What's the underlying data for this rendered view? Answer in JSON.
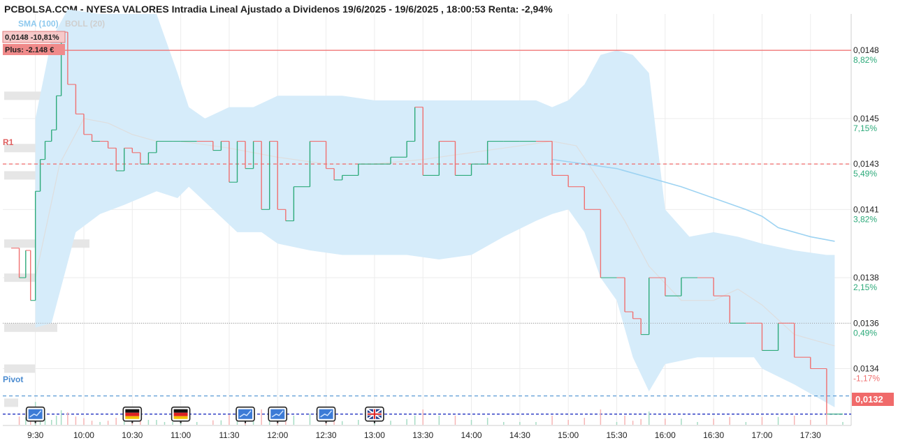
{
  "title": "PCBOLSA.COM - NYESA VALORES Intradia Lineal Ajustado a Dividenos 19/6/2025 - 19/6/2025 , 18:00:53 Renta: -2,94%",
  "legend": {
    "sma": "SMA (100)",
    "boll": "BOLL (20)"
  },
  "badges": {
    "price_change": "0,0148  -10,81%",
    "plus": "Plus: -2.148 €"
  },
  "levels": {
    "r1": "R1",
    "pivot": "Pivot"
  },
  "current_price_label": "0,0132",
  "colors": {
    "up": "#2daa7a",
    "down": "#f07070",
    "band": "#d6ecfa",
    "sma": "#9dd3f2",
    "r1": "#f06a6a",
    "pivot": "#5a9bd5",
    "current": "#2030c0",
    "price_badge": "#f06a6a"
  },
  "chart_data": {
    "type": "line",
    "x_ticks": [
      "9:30",
      "10:00",
      "10:30",
      "11:00",
      "11:30",
      "12:00",
      "12:30",
      "13:00",
      "13:30",
      "14:00",
      "14:30",
      "15:00",
      "15:30",
      "16:00",
      "16:30",
      "17:00",
      "17:30"
    ],
    "y_ticks": [
      {
        "value": 0.0148,
        "label": "0,0148",
        "pct": "8,82%",
        "dir": "up"
      },
      {
        "value": 0.0145,
        "label": "0,0145",
        "pct": "7,15%",
        "dir": "up"
      },
      {
        "value": 0.0143,
        "label": "0,0143",
        "pct": "5,49%",
        "dir": "up"
      },
      {
        "value": 0.0141,
        "label": "0,0141",
        "pct": "3,82%",
        "dir": "up"
      },
      {
        "value": 0.0138,
        "label": "0,0138",
        "pct": "2,15%",
        "dir": "up"
      },
      {
        "value": 0.0136,
        "label": "0,0136",
        "pct": "0,49%",
        "dir": "up"
      },
      {
        "value": 0.0134,
        "label": "0,0134",
        "pct": "-1,17%",
        "dir": "down"
      }
    ],
    "ylim": [
      0.01315,
      0.01496
    ],
    "reference_lines": {
      "high": 0.0148,
      "r1": 0.0143,
      "previous_close": 0.0136,
      "pivot": 0.01328,
      "current": 0.0132
    },
    "time_start": "9:15",
    "time_end": "17:50",
    "price": [
      [
        "9:15",
        0.01393
      ],
      [
        "9:20",
        0.0138
      ],
      [
        "9:24",
        0.01392
      ],
      [
        "9:27",
        0.0137
      ],
      [
        "9:30",
        0.01418
      ],
      [
        "9:33",
        0.01432
      ],
      [
        "9:36",
        0.0144
      ],
      [
        "9:40",
        0.01445
      ],
      [
        "9:43",
        0.0146
      ],
      [
        "9:46",
        0.01488
      ],
      [
        "9:50",
        0.01465
      ],
      [
        "9:55",
        0.01452
      ],
      [
        "10:00",
        0.01443
      ],
      [
        "10:05",
        0.0144
      ],
      [
        "10:10",
        0.0144
      ],
      [
        "10:15",
        0.01437
      ],
      [
        "10:20",
        0.01427
      ],
      [
        "10:25",
        0.01437
      ],
      [
        "10:30",
        0.01435
      ],
      [
        "10:35",
        0.0143
      ],
      [
        "10:40",
        0.01435
      ],
      [
        "10:45",
        0.0144
      ],
      [
        "10:50",
        0.0144
      ],
      [
        "10:55",
        0.0144
      ],
      [
        "11:00",
        0.0144
      ],
      [
        "11:10",
        0.0144
      ],
      [
        "11:20",
        0.01436
      ],
      [
        "11:25",
        0.0144
      ],
      [
        "11:30",
        0.01422
      ],
      [
        "11:35",
        0.0144
      ],
      [
        "11:40",
        0.01428
      ],
      [
        "11:45",
        0.0144
      ],
      [
        "11:50",
        0.0141
      ],
      [
        "11:55",
        0.0144
      ],
      [
        "12:00",
        0.0141
      ],
      [
        "12:05",
        0.01405
      ],
      [
        "12:10",
        0.0142
      ],
      [
        "12:20",
        0.0144
      ],
      [
        "12:30",
        0.01428
      ],
      [
        "12:35",
        0.01423
      ],
      [
        "12:40",
        0.01425
      ],
      [
        "12:50",
        0.0143
      ],
      [
        "13:00",
        0.0143
      ],
      [
        "13:10",
        0.01433
      ],
      [
        "13:20",
        0.0144
      ],
      [
        "13:25",
        0.01455
      ],
      [
        "13:30",
        0.01425
      ],
      [
        "13:40",
        0.0144
      ],
      [
        "13:50",
        0.01425
      ],
      [
        "14:00",
        0.0143
      ],
      [
        "14:10",
        0.0144
      ],
      [
        "14:20",
        0.0144
      ],
      [
        "14:30",
        0.0144
      ],
      [
        "14:40",
        0.0144
      ],
      [
        "14:50",
        0.01425
      ],
      [
        "15:00",
        0.0142
      ],
      [
        "15:10",
        0.0141
      ],
      [
        "15:20",
        0.0138
      ],
      [
        "15:30",
        0.0138
      ],
      [
        "15:35",
        0.01365
      ],
      [
        "15:40",
        0.01362
      ],
      [
        "15:45",
        0.01355
      ],
      [
        "15:50",
        0.0138
      ],
      [
        "16:00",
        0.01372
      ],
      [
        "16:10",
        0.0138
      ],
      [
        "16:20",
        0.0138
      ],
      [
        "16:30",
        0.01372
      ],
      [
        "16:40",
        0.0136
      ],
      [
        "16:50",
        0.0136
      ],
      [
        "17:00",
        0.01348
      ],
      [
        "17:10",
        0.0136
      ],
      [
        "17:20",
        0.01345
      ],
      [
        "17:30",
        0.0134
      ],
      [
        "17:40",
        0.0132
      ],
      [
        "17:50",
        0.0132
      ]
    ],
    "sma_100": [
      [
        "14:50",
        0.01432
      ],
      [
        "15:10",
        0.0143
      ],
      [
        "15:30",
        0.01428
      ],
      [
        "15:50",
        0.01424
      ],
      [
        "16:10",
        0.0142
      ],
      [
        "16:30",
        0.01415
      ],
      [
        "16:50",
        0.0141
      ],
      [
        "17:00",
        0.01407
      ],
      [
        "17:10",
        0.01402
      ],
      [
        "17:30",
        0.01398
      ],
      [
        "17:45",
        0.01396
      ]
    ],
    "boll_20": [
      [
        "9:30",
        0.0138
      ],
      [
        "9:45",
        0.0143
      ],
      [
        "10:00",
        0.0145
      ],
      [
        "10:15",
        0.01448
      ],
      [
        "10:30",
        0.01443
      ],
      [
        "10:45",
        0.0144
      ],
      [
        "11:00",
        0.0144
      ],
      [
        "11:30",
        0.01437
      ],
      [
        "12:00",
        0.01433
      ],
      [
        "12:30",
        0.0143
      ],
      [
        "13:00",
        0.0143
      ],
      [
        "13:30",
        0.01432
      ],
      [
        "14:00",
        0.01435
      ],
      [
        "14:30",
        0.01438
      ],
      [
        "14:50",
        0.0144
      ],
      [
        "15:05",
        0.01438
      ],
      [
        "15:20",
        0.01422
      ],
      [
        "15:35",
        0.01405
      ],
      [
        "15:50",
        0.01385
      ],
      [
        "16:10",
        0.0137
      ],
      [
        "16:30",
        0.0137
      ],
      [
        "16:45",
        0.01375
      ],
      [
        "17:00",
        0.01368
      ],
      [
        "17:20",
        0.01355
      ],
      [
        "17:35",
        0.01352
      ],
      [
        "17:45",
        0.0135
      ]
    ],
    "boll_upper": [
      [
        "9:30",
        0.0145
      ],
      [
        "9:40",
        0.01485
      ],
      [
        "9:50",
        0.01498
      ],
      [
        "10:10",
        0.01496
      ],
      [
        "10:25",
        0.01496
      ],
      [
        "10:45",
        0.01496
      ],
      [
        "10:58",
        0.0147
      ],
      [
        "11:05",
        0.01455
      ],
      [
        "11:15",
        0.0145
      ],
      [
        "11:30",
        0.01455
      ],
      [
        "11:45",
        0.01455
      ],
      [
        "12:00",
        0.0146
      ],
      [
        "12:20",
        0.0146
      ],
      [
        "12:40",
        0.0146
      ],
      [
        "13:00",
        0.01458
      ],
      [
        "13:20",
        0.01458
      ],
      [
        "13:40",
        0.01458
      ],
      [
        "14:00",
        0.01458
      ],
      [
        "14:20",
        0.01458
      ],
      [
        "14:40",
        0.01458
      ],
      [
        "14:50",
        0.01455
      ],
      [
        "15:00",
        0.01458
      ],
      [
        "15:10",
        0.01465
      ],
      [
        "15:20",
        0.01478
      ],
      [
        "15:30",
        0.0148
      ],
      [
        "15:40",
        0.01478
      ],
      [
        "15:50",
        0.0147
      ],
      [
        "16:00",
        0.0141
      ],
      [
        "16:15",
        0.01398
      ],
      [
        "16:30",
        0.014
      ],
      [
        "16:45",
        0.01398
      ],
      [
        "17:00",
        0.01395
      ],
      [
        "17:20",
        0.01392
      ],
      [
        "17:40",
        0.0139
      ],
      [
        "17:45",
        0.0139
      ]
    ],
    "boll_lower": [
      [
        "9:30",
        0.01358
      ],
      [
        "9:40",
        0.0136
      ],
      [
        "9:55",
        0.014
      ],
      [
        "10:10",
        0.01408
      ],
      [
        "10:25",
        0.01412
      ],
      [
        "10:45",
        0.01418
      ],
      [
        "10:58",
        0.01415
      ],
      [
        "11:05",
        0.0142
      ],
      [
        "11:20",
        0.0141
      ],
      [
        "11:35",
        0.014
      ],
      [
        "11:50",
        0.014
      ],
      [
        "12:00",
        0.01395
      ],
      [
        "12:20",
        0.01392
      ],
      [
        "12:40",
        0.0139
      ],
      [
        "13:00",
        0.0139
      ],
      [
        "13:20",
        0.0139
      ],
      [
        "13:40",
        0.01388
      ],
      [
        "14:00",
        0.0139
      ],
      [
        "14:20",
        0.01398
      ],
      [
        "14:40",
        0.01405
      ],
      [
        "14:50",
        0.01408
      ],
      [
        "15:00",
        0.0141
      ],
      [
        "15:10",
        0.014
      ],
      [
        "15:20",
        0.0138
      ],
      [
        "15:30",
        0.0137
      ],
      [
        "15:40",
        0.01345
      ],
      [
        "15:50",
        0.0133
      ],
      [
        "16:00",
        0.01342
      ],
      [
        "16:20",
        0.01345
      ],
      [
        "16:40",
        0.01345
      ],
      [
        "16:55",
        0.01345
      ],
      [
        "17:00",
        0.0134
      ],
      [
        "17:20",
        0.01333
      ],
      [
        "17:40",
        0.01325
      ],
      [
        "17:45",
        0.01323
      ]
    ],
    "volume_profile_levels": [
      0.0146,
      0.01437,
      0.01425,
      0.01395,
      0.0138,
      0.01358,
      0.0134,
      0.01325
    ]
  },
  "markers": [
    {
      "time": "9:30",
      "type": "chart-news-icon"
    },
    {
      "time": "10:30",
      "type": "flag-germany-icon"
    },
    {
      "time": "11:00",
      "type": "flag-germany-icon"
    },
    {
      "time": "11:40",
      "type": "chart-news-icon"
    },
    {
      "time": "12:00",
      "type": "chart-news-icon"
    },
    {
      "time": "12:30",
      "type": "chart-news-icon"
    },
    {
      "time": "13:00",
      "type": "flag-uk-icon"
    }
  ]
}
